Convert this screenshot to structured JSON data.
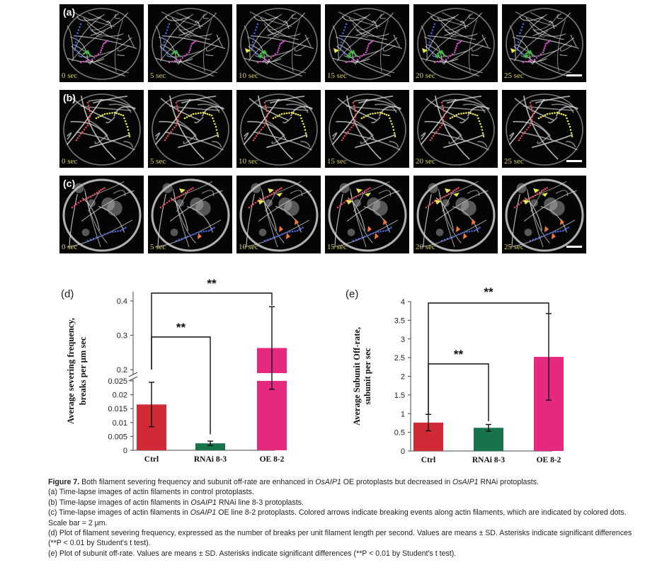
{
  "micrographs": {
    "rows": [
      {
        "label": "(a)",
        "times": [
          "0 sec",
          "5 sec",
          "10 sec",
          "15 sec",
          "20 sec",
          "25 sec"
        ]
      },
      {
        "label": "(b)",
        "times": [
          "0 sec",
          "5 sec",
          "10 sec",
          "15 sec",
          "20 sec",
          "25 sec"
        ]
      },
      {
        "label": "(c)",
        "times": [
          "0 sec",
          "5 sec",
          "10 sec",
          "15 sec",
          "20 sec",
          "25 sec"
        ]
      }
    ],
    "dot_colors": {
      "blue": "#4a63d8",
      "magenta": "#d04fc0",
      "green": "#3fbf3f",
      "red": "#e0485a",
      "yellow": "#e8e84a",
      "orange": "#f07a3a"
    }
  },
  "chart_data": [
    {
      "type": "bar",
      "panel_label": "(d)",
      "ylabel": "Average severing frequency, breaks per μm sec",
      "categories": [
        "Ctrl",
        "RNAi 8-3",
        "OE 8-2"
      ],
      "values": [
        0.0165,
        0.0025,
        0.263
      ],
      "errors": [
        0.008,
        0.0008,
        0.12
      ],
      "colors": [
        "#cf2a36",
        "#17734a",
        "#e4297e"
      ],
      "axis_break": true,
      "yticks_lower": [
        "0",
        "0.005",
        "0.01",
        "0.015",
        "0.02",
        "0.025"
      ],
      "yticks_upper": [
        "0.2",
        "0.3",
        "0.4"
      ],
      "significance": [
        {
          "from": "Ctrl",
          "to": "RNAi 8-3",
          "label": "**"
        },
        {
          "from": "Ctrl",
          "to": "OE 8-2",
          "label": "**"
        }
      ]
    },
    {
      "type": "bar",
      "panel_label": "(e)",
      "ylabel": "Average Subunit Off-rate, subunit per sec",
      "categories": [
        "Ctrl",
        "RNAi 8-3",
        "OE 8-2"
      ],
      "values": [
        0.76,
        0.62,
        2.52
      ],
      "errors": [
        0.22,
        0.09,
        1.16
      ],
      "colors": [
        "#cf2a36",
        "#17734a",
        "#e4297e"
      ],
      "ylim": [
        0,
        4
      ],
      "yticks": [
        "0",
        "0.5",
        "1",
        "1.5",
        "2",
        "2.5",
        "3",
        "3.5",
        "4"
      ],
      "significance": [
        {
          "from": "Ctrl",
          "to": "RNAi 8-3",
          "label": "**"
        },
        {
          "from": "Ctrl",
          "to": "OE 8-2",
          "label": "**"
        }
      ]
    }
  ],
  "caption": {
    "title": "Figure 7.",
    "intro_1": " Both filament severing frequency and subunit off-rate are enhanced in ",
    "gene_1": "OsAIP1",
    "intro_2": " OE protoplasts but decreased in ",
    "gene_2": "OsAIP1",
    "intro_3": " RNAi protoplasts.",
    "line_a": "(a) Time-lapse images of actin filaments in control protoplasts.",
    "line_b_1": "(b) Time-lapse images of actin filaments in ",
    "line_b_gene": "OsAIP1",
    "line_b_2": " RNAi line 8-3 protoplasts.",
    "line_c_1": "(c) Time-lapse images of actin filaments in ",
    "line_c_gene": "OsAIP1",
    "line_c_2": " OE line 8-2 protoplasts. Colored arrows indicate breaking events along actin filaments, which are indicated by colored dots. Scale bar = 2 μm.",
    "line_d": "(d) Plot of filament severing frequency, expressed as the number of breaks per unit filament length per second. Values are means ± SD. Asterisks indicate significant differences (**P < 0.01 by Student's t test).",
    "line_e": "(e) Plot of subunit off-rate. Values are means ± SD. Asterisks indicate significant differences (**P < 0.01 by Student's t test)."
  }
}
